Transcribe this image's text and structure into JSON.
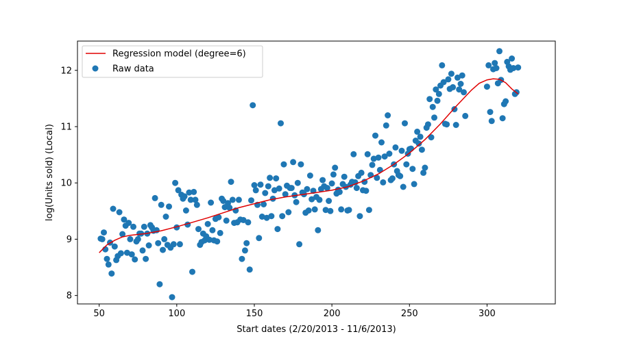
{
  "chart_data": {
    "type": "scatter",
    "title": "",
    "xlabel": "Start dates (2/20/2013 - 11/6/2013)",
    "ylabel": "log(Units sold) (Local)",
    "xlim": [
      36,
      344
    ],
    "ylim": [
      7.85,
      12.52
    ],
    "xticks": [
      50,
      100,
      150,
      200,
      250,
      300
    ],
    "yticks": [
      8,
      9,
      10,
      11,
      12
    ],
    "grid": false,
    "legend": {
      "placement": "top-left",
      "entries": [
        {
          "label": "Regression model (degree=6)",
          "kind": "line",
          "color": "#e00000"
        },
        {
          "label": "Raw data",
          "kind": "marker",
          "color": "#1f77b4"
        }
      ]
    },
    "series": [
      {
        "name": "Raw data",
        "kind": "scatter",
        "color": "#1f77b4",
        "points": [
          [
            51,
            9.01
          ],
          [
            52,
            9.0
          ],
          [
            53,
            9.12
          ],
          [
            54,
            8.82
          ],
          [
            55,
            8.65
          ],
          [
            56,
            8.55
          ],
          [
            57,
            8.94
          ],
          [
            58,
            8.39
          ],
          [
            59,
            9.54
          ],
          [
            60,
            8.87
          ],
          [
            61,
            8.63
          ],
          [
            62,
            8.7
          ],
          [
            63,
            9.48
          ],
          [
            64,
            8.75
          ],
          [
            65,
            9.09
          ],
          [
            66,
            9.35
          ],
          [
            67,
            9.24
          ],
          [
            68,
            8.76
          ],
          [
            69,
            9.29
          ],
          [
            70,
            9.0
          ],
          [
            71,
            8.73
          ],
          [
            72,
            9.22
          ],
          [
            73,
            8.64
          ],
          [
            74,
            8.96
          ],
          [
            75,
            9.0
          ],
          [
            76,
            9.1
          ],
          [
            77,
            9.1
          ],
          [
            78,
            8.8
          ],
          [
            79,
            9.22
          ],
          [
            80,
            8.65
          ],
          [
            81,
            9.1
          ],
          [
            82,
            8.89
          ],
          [
            83,
            9.25
          ],
          [
            84,
            9.21
          ],
          [
            85,
            9.15
          ],
          [
            86,
            9.73
          ],
          [
            87,
            9.16
          ],
          [
            88,
            8.93
          ],
          [
            89,
            8.2
          ],
          [
            90,
            9.61
          ],
          [
            91,
            8.81
          ],
          [
            92,
            9.0
          ],
          [
            93,
            9.4
          ],
          [
            94,
            8.9
          ],
          [
            95,
            9.58
          ],
          [
            96,
            8.85
          ],
          [
            97,
            7.97
          ],
          [
            98,
            8.91
          ],
          [
            99,
            10.0
          ],
          [
            100,
            9.21
          ],
          [
            101,
            9.87
          ],
          [
            102,
            8.91
          ],
          [
            103,
            9.79
          ],
          [
            104,
            9.72
          ],
          [
            105,
            9.76
          ],
          [
            106,
            9.51
          ],
          [
            107,
            9.26
          ],
          [
            108,
            9.83
          ],
          [
            109,
            9.7
          ],
          [
            110,
            8.42
          ],
          [
            111,
            9.84
          ],
          [
            112,
            9.7
          ],
          [
            113,
            9.61
          ],
          [
            114,
            9.18
          ],
          [
            115,
            8.9
          ],
          [
            116,
            8.95
          ],
          [
            117,
            9.1
          ],
          [
            118,
            8.98
          ],
          [
            119,
            9.05
          ],
          [
            120,
            9.27
          ],
          [
            121,
            8.99
          ],
          [
            122,
            9.65
          ],
          [
            123,
            9.16
          ],
          [
            124,
            8.98
          ],
          [
            125,
            9.36
          ],
          [
            126,
            8.96
          ],
          [
            127,
            9.39
          ],
          [
            128,
            9.11
          ],
          [
            129,
            9.72
          ],
          [
            130,
            9.68
          ],
          [
            131,
            9.57
          ],
          [
            132,
            9.33
          ],
          [
            133,
            9.64
          ],
          [
            134,
            9.56
          ],
          [
            135,
            10.02
          ],
          [
            136,
            9.7
          ],
          [
            137,
            9.29
          ],
          [
            138,
            9.51
          ],
          [
            139,
            9.3
          ],
          [
            140,
            9.7
          ],
          [
            141,
            9.35
          ],
          [
            142,
            8.65
          ],
          [
            143,
            9.34
          ],
          [
            144,
            8.8
          ],
          [
            145,
            8.93
          ],
          [
            146,
            9.3
          ],
          [
            147,
            8.46
          ],
          [
            148,
            9.69
          ],
          [
            149,
            11.38
          ],
          [
            150,
            9.96
          ],
          [
            151,
            9.87
          ],
          [
            152,
            9.61
          ],
          [
            153,
            9.02
          ],
          [
            154,
            9.97
          ],
          [
            155,
            9.4
          ],
          [
            156,
            9.62
          ],
          [
            157,
            9.82
          ],
          [
            158,
            9.38
          ],
          [
            159,
            9.94
          ],
          [
            160,
            10.09
          ],
          [
            161,
            9.41
          ],
          [
            162,
            9.72
          ],
          [
            163,
            9.87
          ],
          [
            164,
            10.08
          ],
          [
            165,
            9.18
          ],
          [
            166,
            9.9
          ],
          [
            167,
            11.06
          ],
          [
            168,
            9.41
          ],
          [
            169,
            10.33
          ],
          [
            170,
            9.8
          ],
          [
            171,
            9.95
          ],
          [
            172,
            9.48
          ],
          [
            173,
            9.91
          ],
          [
            174,
            9.91
          ],
          [
            175,
            10.37
          ],
          [
            176,
            9.78
          ],
          [
            177,
            9.66
          ],
          [
            178,
            10.0
          ],
          [
            179,
            8.91
          ],
          [
            180,
            10.33
          ],
          [
            181,
            9.83
          ],
          [
            182,
            9.8
          ],
          [
            183,
            9.47
          ],
          [
            184,
            9.89
          ],
          [
            185,
            9.51
          ],
          [
            186,
            10.13
          ],
          [
            187,
            9.71
          ],
          [
            188,
            9.86
          ],
          [
            189,
            9.53
          ],
          [
            190,
            9.75
          ],
          [
            191,
            9.16
          ],
          [
            192,
            9.7
          ],
          [
            193,
            9.89
          ],
          [
            194,
            10.05
          ],
          [
            195,
            9.94
          ],
          [
            196,
            9.52
          ],
          [
            197,
            9.91
          ],
          [
            198,
            9.68
          ],
          [
            199,
            9.5
          ],
          [
            200,
            9.99
          ],
          [
            201,
            10.15
          ],
          [
            202,
            10.27
          ],
          [
            203,
            9.81
          ],
          [
            204,
            9.88
          ],
          [
            205,
            9.84
          ],
          [
            206,
            9.53
          ],
          [
            207,
            9.98
          ],
          [
            208,
            10.11
          ],
          [
            209,
            9.93
          ],
          [
            210,
            9.51
          ],
          [
            211,
            9.52
          ],
          [
            212,
            9.97
          ],
          [
            213,
            10.02
          ],
          [
            214,
            10.51
          ],
          [
            215,
            10.01
          ],
          [
            216,
            9.91
          ],
          [
            217,
            10.12
          ],
          [
            218,
            9.41
          ],
          [
            219,
            10.18
          ],
          [
            220,
            9.87
          ],
          [
            221,
            10.02
          ],
          [
            222,
            9.86
          ],
          [
            223,
            10.51
          ],
          [
            224,
            9.52
          ],
          [
            225,
            10.14
          ],
          [
            226,
            10.32
          ],
          [
            227,
            10.43
          ],
          [
            228,
            10.84
          ],
          [
            229,
            10.09
          ],
          [
            230,
            10.45
          ],
          [
            231,
            10.23
          ],
          [
            232,
            10.72
          ],
          [
            233,
            10.01
          ],
          [
            234,
            10.47
          ],
          [
            235,
            11.02
          ],
          [
            236,
            11.2
          ],
          [
            237,
            10.52
          ],
          [
            238,
            10.05
          ],
          [
            239,
            10.08
          ],
          [
            240,
            10.33
          ],
          [
            241,
            10.63
          ],
          [
            242,
            10.21
          ],
          [
            243,
            10.14
          ],
          [
            244,
            10.12
          ],
          [
            245,
            10.57
          ],
          [
            246,
            9.93
          ],
          [
            247,
            11.06
          ],
          [
            248,
            10.33
          ],
          [
            249,
            10.52
          ],
          [
            250,
            10.6
          ],
          [
            251,
            10.61
          ],
          [
            252,
            10.25
          ],
          [
            253,
            9.98
          ],
          [
            254,
            10.75
          ],
          [
            255,
            10.91
          ],
          [
            256,
            10.7
          ],
          [
            257,
            10.82
          ],
          [
            258,
            10.59
          ],
          [
            259,
            10.18
          ],
          [
            260,
            10.27
          ],
          [
            261,
            10.98
          ],
          [
            262,
            11.04
          ],
          [
            263,
            11.49
          ],
          [
            264,
            10.81
          ],
          [
            265,
            11.35
          ],
          [
            266,
            11.16
          ],
          [
            267,
            11.66
          ],
          [
            268,
            11.46
          ],
          [
            269,
            11.58
          ],
          [
            270,
            11.73
          ],
          [
            271,
            12.09
          ],
          [
            272,
            11.79
          ],
          [
            273,
            11.05
          ],
          [
            274,
            11.04
          ],
          [
            275,
            11.84
          ],
          [
            276,
            11.67
          ],
          [
            277,
            11.94
          ],
          [
            278,
            11.7
          ],
          [
            279,
            11.31
          ],
          [
            280,
            11.03
          ],
          [
            281,
            11.87
          ],
          [
            282,
            11.66
          ],
          [
            283,
            11.76
          ],
          [
            284,
            11.91
          ],
          [
            285,
            11.61
          ],
          [
            286,
            11.19
          ],
          [
            300,
            11.71
          ],
          [
            301,
            12.09
          ],
          [
            302,
            11.26
          ],
          [
            303,
            11.1
          ],
          [
            304,
            12.02
          ],
          [
            305,
            12.13
          ],
          [
            306,
            12.04
          ],
          [
            307,
            11.77
          ],
          [
            308,
            12.34
          ],
          [
            309,
            11.83
          ],
          [
            310,
            11.15
          ],
          [
            311,
            11.4
          ],
          [
            312,
            11.45
          ],
          [
            313,
            12.15
          ],
          [
            314,
            12.07
          ],
          [
            315,
            12.01
          ],
          [
            316,
            12.21
          ],
          [
            317,
            12.04
          ],
          [
            318,
            11.58
          ],
          [
            319,
            11.61
          ],
          [
            320,
            12.05
          ]
        ]
      },
      {
        "name": "Regression model (degree=6)",
        "kind": "line",
        "color": "#e00000",
        "points": [
          [
            50,
            8.76
          ],
          [
            55,
            8.9
          ],
          [
            60,
            8.98
          ],
          [
            65,
            9.04
          ],
          [
            70,
            9.07
          ],
          [
            80,
            9.1
          ],
          [
            90,
            9.15
          ],
          [
            100,
            9.22
          ],
          [
            110,
            9.3
          ],
          [
            120,
            9.38
          ],
          [
            130,
            9.47
          ],
          [
            140,
            9.56
          ],
          [
            150,
            9.63
          ],
          [
            160,
            9.7
          ],
          [
            170,
            9.75
          ],
          [
            180,
            9.79
          ],
          [
            190,
            9.83
          ],
          [
            200,
            9.87
          ],
          [
            210,
            9.93
          ],
          [
            220,
            10.03
          ],
          [
            230,
            10.16
          ],
          [
            240,
            10.33
          ],
          [
            250,
            10.53
          ],
          [
            260,
            10.77
          ],
          [
            270,
            11.05
          ],
          [
            280,
            11.36
          ],
          [
            290,
            11.65
          ],
          [
            295,
            11.77
          ],
          [
            300,
            11.83
          ],
          [
            304,
            11.85
          ],
          [
            308,
            11.84
          ],
          [
            312,
            11.78
          ],
          [
            316,
            11.67
          ],
          [
            320,
            11.58
          ]
        ]
      }
    ]
  }
}
